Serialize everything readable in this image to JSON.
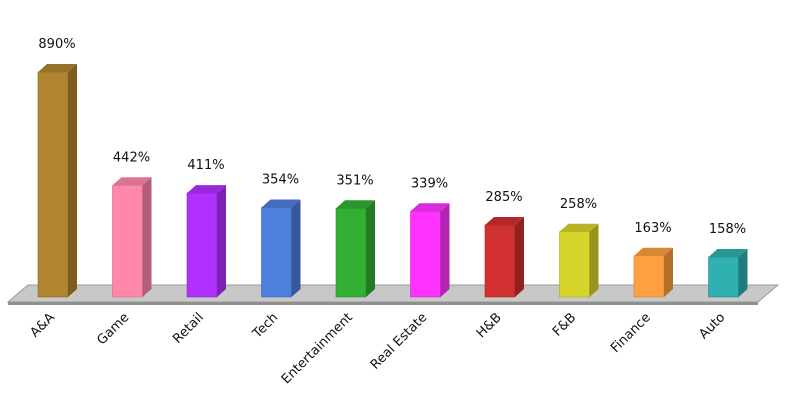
{
  "chart_data": {
    "type": "bar3d",
    "categories": [
      "A&A",
      "Game",
      "Retail",
      "Tech",
      "Entertainment",
      "Real Estate",
      "H&B",
      "F&B",
      "Finance",
      "Auto"
    ],
    "values": [
      890,
      442,
      411,
      354,
      351,
      339,
      285,
      258,
      163,
      158
    ],
    "value_labels": [
      "890%",
      "442%",
      "411%",
      "354%",
      "351%",
      "339%",
      "285%",
      "258%",
      "163%",
      "158%"
    ],
    "colors": [
      "#b08530",
      "#ff88aa",
      "#b030ff",
      "#4f7fdd",
      "#33b033",
      "#ff33ff",
      "#d03030",
      "#d8d52a",
      "#ffa040",
      "#30b0b0"
    ]
  }
}
